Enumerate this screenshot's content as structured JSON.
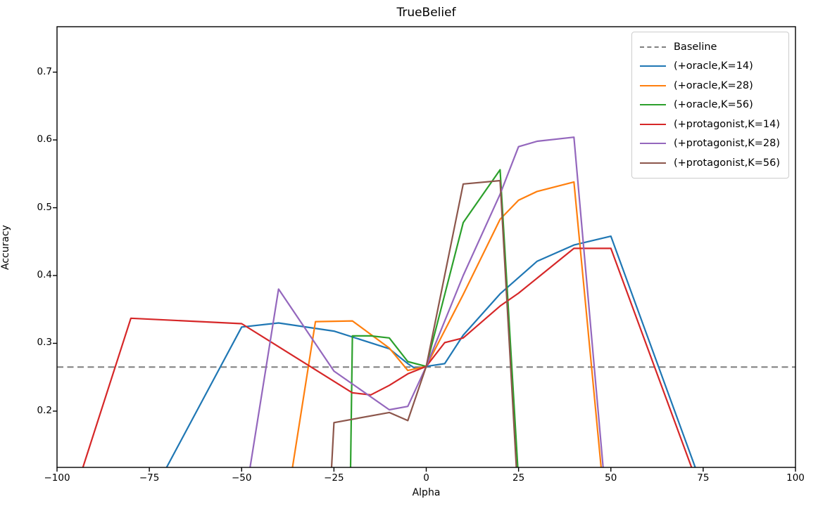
{
  "title": "TrueBelief",
  "chart_data": {
    "type": "line",
    "title": "TrueBelief",
    "xlabel": "Alpha",
    "ylabel": "Accuracy",
    "xlim": [
      -100,
      100
    ],
    "ylim": [
      0.117,
      0.767
    ],
    "x_ticks": [
      -100,
      -75,
      -50,
      -25,
      0,
      25,
      50,
      75,
      100
    ],
    "x_tick_labels": [
      "−100",
      "−75",
      "−50",
      "−25",
      "0",
      "25",
      "50",
      "75",
      "100"
    ],
    "y_ticks": [
      0.2,
      0.3,
      0.4,
      0.5,
      0.6,
      0.7
    ],
    "y_tick_labels": [
      "0.2",
      "0.3",
      "0.4",
      "0.5",
      "0.6",
      "0.7"
    ],
    "grid": false,
    "legend_position": "upper right",
    "baseline": {
      "label": "Baseline",
      "value": 0.265,
      "color": "#7f7f7f",
      "dashed": true
    },
    "series": [
      {
        "name": "(+oracle,K=14)",
        "color": "#1f77b4",
        "points": [
          [
            -72,
            0.1
          ],
          [
            -50,
            0.324
          ],
          [
            -40,
            0.33
          ],
          [
            -25,
            0.318
          ],
          [
            -10,
            0.292
          ],
          [
            -5,
            0.27
          ],
          [
            -3,
            0.263
          ],
          [
            0,
            0.266
          ],
          [
            5,
            0.27
          ],
          [
            10,
            0.312
          ],
          [
            20,
            0.373
          ],
          [
            30,
            0.421
          ],
          [
            40,
            0.445
          ],
          [
            50,
            0.458
          ],
          [
            74,
            0.1
          ]
        ]
      },
      {
        "name": "(+oracle,K=28)",
        "color": "#ff7f0e",
        "points": [
          [
            -37,
            0.09
          ],
          [
            -30,
            0.332
          ],
          [
            -20,
            0.333
          ],
          [
            -10,
            0.293
          ],
          [
            -5,
            0.26
          ],
          [
            0,
            0.266
          ],
          [
            10,
            0.372
          ],
          [
            20,
            0.483
          ],
          [
            25,
            0.511
          ],
          [
            30,
            0.524
          ],
          [
            40,
            0.538
          ],
          [
            48,
            0.08
          ]
        ]
      },
      {
        "name": "(+oracle,K=56)",
        "color": "#2ca02c",
        "points": [
          [
            -20.6,
            0.08
          ],
          [
            -20,
            0.311
          ],
          [
            -15,
            0.311
          ],
          [
            -10,
            0.308
          ],
          [
            -5,
            0.273
          ],
          [
            0,
            0.266
          ],
          [
            10,
            0.478
          ],
          [
            20,
            0.556
          ],
          [
            25.3,
            0.07
          ]
        ]
      },
      {
        "name": "(+protagonist,K=14)",
        "color": "#d62728",
        "points": [
          [
            -94,
            0.1
          ],
          [
            -80,
            0.337
          ],
          [
            -50,
            0.329
          ],
          [
            -20,
            0.227
          ],
          [
            -15,
            0.224
          ],
          [
            -10,
            0.238
          ],
          [
            -5,
            0.255
          ],
          [
            0,
            0.266
          ],
          [
            5,
            0.301
          ],
          [
            10,
            0.308
          ],
          [
            20,
            0.355
          ],
          [
            25,
            0.374
          ],
          [
            40,
            0.44
          ],
          [
            50,
            0.44
          ],
          [
            73,
            0.1
          ]
        ]
      },
      {
        "name": "(+protagonist,K=28)",
        "color": "#9467bd",
        "points": [
          [
            -48.5,
            0.09
          ],
          [
            -40,
            0.38
          ],
          [
            -25,
            0.259
          ],
          [
            -10,
            0.202
          ],
          [
            -5,
            0.207
          ],
          [
            0,
            0.266
          ],
          [
            10,
            0.4
          ],
          [
            20,
            0.52
          ],
          [
            25,
            0.59
          ],
          [
            30,
            0.598
          ],
          [
            40,
            0.604
          ],
          [
            48.5,
            0.08
          ]
        ]
      },
      {
        "name": "(+protagonist,K=56)",
        "color": "#8c564b",
        "points": [
          [
            -26,
            0.08
          ],
          [
            -25,
            0.183
          ],
          [
            -10,
            0.198
          ],
          [
            -5,
            0.186
          ],
          [
            0,
            0.266
          ],
          [
            10,
            0.535
          ],
          [
            20,
            0.54
          ],
          [
            25,
            0.06
          ]
        ]
      }
    ]
  }
}
